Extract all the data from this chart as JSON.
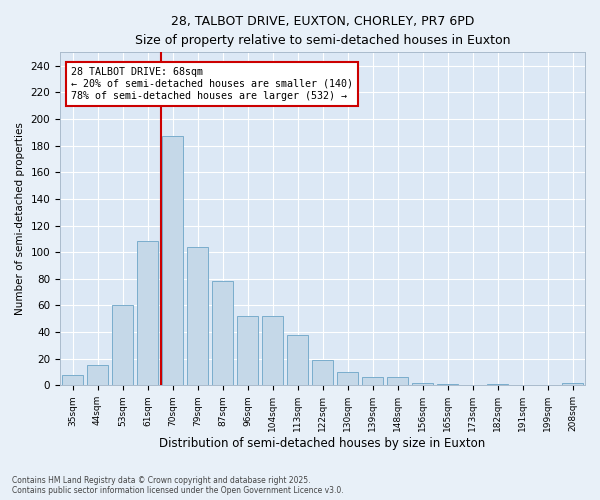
{
  "title_line1": "28, TALBOT DRIVE, EUXTON, CHORLEY, PR7 6PD",
  "title_line2": "Size of property relative to semi-detached houses in Euxton",
  "xlabel": "Distribution of semi-detached houses by size in Euxton",
  "ylabel": "Number of semi-detached properties",
  "footnote": "Contains HM Land Registry data © Crown copyright and database right 2025.\nContains public sector information licensed under the Open Government Licence v3.0.",
  "categories": [
    "35sqm",
    "44sqm",
    "53sqm",
    "61sqm",
    "70sqm",
    "79sqm",
    "87sqm",
    "96sqm",
    "104sqm",
    "113sqm",
    "122sqm",
    "130sqm",
    "139sqm",
    "148sqm",
    "156sqm",
    "165sqm",
    "173sqm",
    "182sqm",
    "191sqm",
    "199sqm",
    "208sqm"
  ],
  "values": [
    8,
    15,
    60,
    108,
    187,
    104,
    78,
    52,
    52,
    38,
    19,
    10,
    6,
    6,
    2,
    1,
    0,
    1,
    0,
    0,
    2
  ],
  "bar_color": "#c5d8e8",
  "bar_edge_color": "#7aadcc",
  "red_line_label": "28 TALBOT DRIVE: 68sqm",
  "smaller_pct": 20,
  "smaller_count": 140,
  "larger_pct": 78,
  "larger_count": 532,
  "red_line_bin_index": 4,
  "ylim": [
    0,
    250
  ],
  "yticks": [
    0,
    20,
    40,
    60,
    80,
    100,
    120,
    140,
    160,
    180,
    200,
    220,
    240
  ],
  "background_color": "#e8f0f8",
  "plot_bg_color": "#dce8f5",
  "grid_color": "#ffffff",
  "annotation_box_edge": "#cc0000",
  "red_line_color": "#cc0000"
}
